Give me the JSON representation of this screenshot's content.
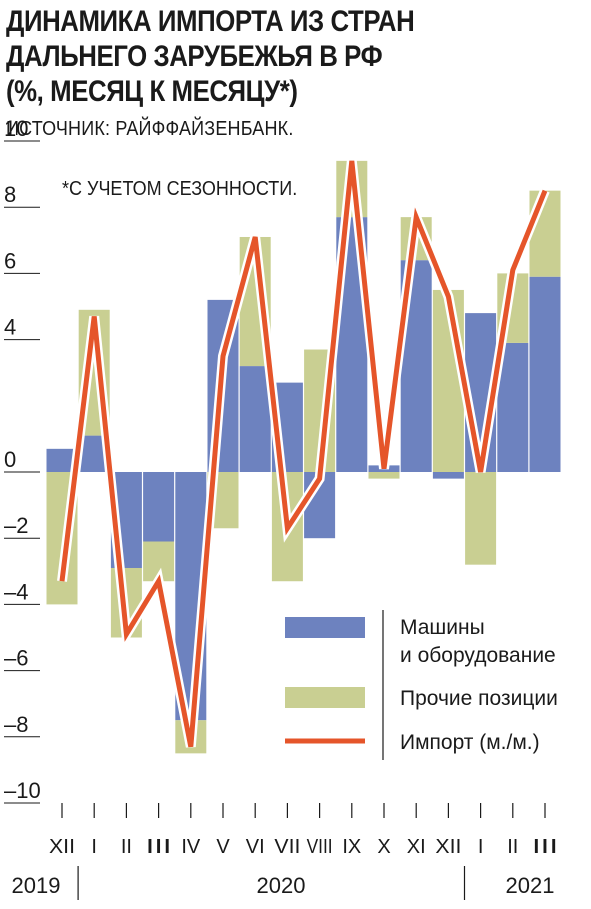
{
  "header": {
    "title_lines": [
      "ДИНАМИКА ИМПОРТА ИЗ СТРАН",
      "ДАЛЬНЕГО ЗАРУБЕЖЬЯ В РФ",
      "(%, МЕСЯЦ К МЕСЯЦУ*)"
    ],
    "source": "ИСТОЧНИК: РАЙФФАЙЗЕНБАНК.",
    "note": "*С УЧЕТОМ СЕЗОННОСТИ."
  },
  "colors": {
    "machinery": "#6d82bf",
    "other": "#c9cf92",
    "import_line": "#e5552a",
    "line_outline": "#ffffff"
  },
  "chart_data": {
    "type": "bar",
    "stacked": true,
    "categories": [
      "XII",
      "I",
      "II",
      "III",
      "IV",
      "V",
      "VI",
      "VII",
      "VIII",
      "IX",
      "X",
      "XI",
      "XII",
      "I",
      "II",
      "III"
    ],
    "years": [
      {
        "label": "2019",
        "from": 0,
        "to": 0
      },
      {
        "label": "2020",
        "from": 1,
        "to": 12
      },
      {
        "label": "2021",
        "from": 13,
        "to": 15
      }
    ],
    "series": [
      {
        "name": "Машины\nи оборудование",
        "type": "bar",
        "values": [
          0.7,
          1.1,
          -2.9,
          -2.1,
          -7.5,
          5.2,
          3.2,
          2.7,
          -2.0,
          7.7,
          0.2,
          6.4,
          -0.2,
          4.8,
          3.9,
          5.9
        ]
      },
      {
        "name": "Прочие позиции",
        "type": "bar",
        "values": [
          -4.0,
          3.8,
          -2.1,
          -1.2,
          -1.0,
          -1.7,
          3.9,
          -3.3,
          3.7,
          1.7,
          -0.2,
          1.3,
          5.5,
          -2.8,
          2.1,
          2.6
        ]
      },
      {
        "name": "Импорт (м./м.)",
        "type": "line",
        "values": [
          -3.3,
          4.7,
          -4.9,
          -3.3,
          -8.3,
          3.5,
          7.1,
          -1.7,
          -0.2,
          9.4,
          0.1,
          7.7,
          5.3,
          0.0,
          6.1,
          8.5
        ]
      }
    ],
    "yticks": [
      "10",
      "8",
      "6",
      "4",
      "0",
      "–2",
      "–4",
      "–6",
      "–8",
      "–10"
    ],
    "ytick_values": [
      10,
      8,
      6,
      4,
      0,
      -2,
      -4,
      -6,
      -8,
      -10
    ],
    "ylim": [
      -10,
      10
    ],
    "legend_position": "bottom-right",
    "grid": false
  }
}
